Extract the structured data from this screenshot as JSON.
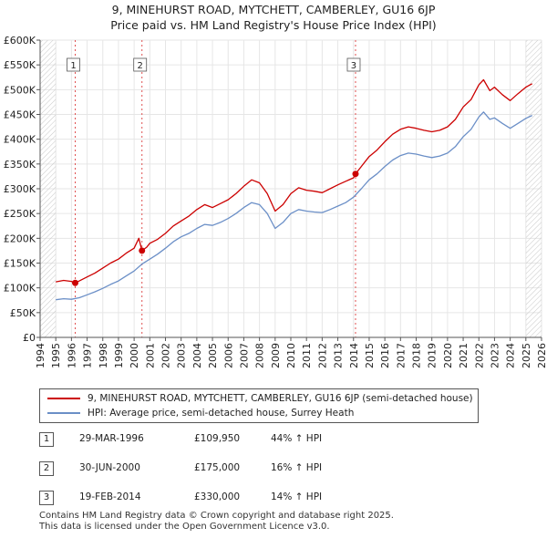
{
  "chart_data": {
    "type": "line",
    "title": "9, MINEHURST ROAD, MYTCHETT, CAMBERLEY, GU16 6JP",
    "subtitle": "Price paid vs. HM Land Registry's House Price Index (HPI)",
    "xlim": [
      1994,
      2026
    ],
    "ylim": [
      0,
      600000
    ],
    "x_ticks": [
      "1994",
      "1995",
      "1996",
      "1997",
      "1998",
      "1999",
      "2000",
      "2001",
      "2002",
      "2003",
      "2004",
      "2005",
      "2006",
      "2007",
      "2008",
      "2009",
      "2010",
      "2011",
      "2012",
      "2013",
      "2014",
      "2015",
      "2016",
      "2017",
      "2018",
      "2019",
      "2020",
      "2021",
      "2022",
      "2023",
      "2024",
      "2025",
      "2026"
    ],
    "y_ticks": [
      {
        "value": 0,
        "label": "£0"
      },
      {
        "value": 50000,
        "label": "£50K"
      },
      {
        "value": 100000,
        "label": "£100K"
      },
      {
        "value": 150000,
        "label": "£150K"
      },
      {
        "value": 200000,
        "label": "£200K"
      },
      {
        "value": 250000,
        "label": "£250K"
      },
      {
        "value": 300000,
        "label": "£300K"
      },
      {
        "value": 350000,
        "label": "£350K"
      },
      {
        "value": 400000,
        "label": "£400K"
      },
      {
        "value": 450000,
        "label": "£450K"
      },
      {
        "value": 500000,
        "label": "£500K"
      },
      {
        "value": 550000,
        "label": "£550K"
      },
      {
        "value": 600000,
        "label": "£600K"
      }
    ],
    "grid": true,
    "series": [
      {
        "name": "9, MINEHURST ROAD, MYTCHETT, CAMBERLEY, GU16 6JP (semi-detached house)",
        "color": "#cc0000",
        "points": [
          [
            1995.0,
            112000
          ],
          [
            1995.5,
            115000
          ],
          [
            1996.0,
            113000
          ],
          [
            1996.24,
            109950
          ],
          [
            1996.5,
            114000
          ],
          [
            1997.0,
            122000
          ],
          [
            1997.5,
            130000
          ],
          [
            1998.0,
            140000
          ],
          [
            1998.5,
            150000
          ],
          [
            1999.0,
            158000
          ],
          [
            1999.5,
            170000
          ],
          [
            2000.0,
            180000
          ],
          [
            2000.3,
            200000
          ],
          [
            2000.5,
            175000
          ],
          [
            2000.8,
            182000
          ],
          [
            2001.0,
            190000
          ],
          [
            2001.5,
            198000
          ],
          [
            2002.0,
            210000
          ],
          [
            2002.5,
            225000
          ],
          [
            2003.0,
            235000
          ],
          [
            2003.5,
            245000
          ],
          [
            2004.0,
            258000
          ],
          [
            2004.5,
            268000
          ],
          [
            2005.0,
            262000
          ],
          [
            2005.5,
            270000
          ],
          [
            2006.0,
            278000
          ],
          [
            2006.5,
            290000
          ],
          [
            2007.0,
            305000
          ],
          [
            2007.5,
            318000
          ],
          [
            2008.0,
            312000
          ],
          [
            2008.5,
            290000
          ],
          [
            2009.0,
            255000
          ],
          [
            2009.5,
            268000
          ],
          [
            2010.0,
            290000
          ],
          [
            2010.5,
            302000
          ],
          [
            2011.0,
            297000
          ],
          [
            2011.5,
            295000
          ],
          [
            2012.0,
            292000
          ],
          [
            2012.5,
            300000
          ],
          [
            2013.0,
            308000
          ],
          [
            2013.5,
            315000
          ],
          [
            2014.0,
            322000
          ],
          [
            2014.13,
            330000
          ],
          [
            2014.5,
            345000
          ],
          [
            2015.0,
            365000
          ],
          [
            2015.5,
            378000
          ],
          [
            2016.0,
            395000
          ],
          [
            2016.5,
            410000
          ],
          [
            2017.0,
            420000
          ],
          [
            2017.5,
            425000
          ],
          [
            2018.0,
            422000
          ],
          [
            2018.5,
            418000
          ],
          [
            2019.0,
            415000
          ],
          [
            2019.5,
            418000
          ],
          [
            2020.0,
            425000
          ],
          [
            2020.5,
            440000
          ],
          [
            2021.0,
            465000
          ],
          [
            2021.5,
            480000
          ],
          [
            2022.0,
            510000
          ],
          [
            2022.3,
            520000
          ],
          [
            2022.7,
            498000
          ],
          [
            2023.0,
            505000
          ],
          [
            2023.5,
            490000
          ],
          [
            2024.0,
            478000
          ],
          [
            2024.5,
            492000
          ],
          [
            2025.0,
            505000
          ],
          [
            2025.4,
            512000
          ]
        ]
      },
      {
        "name": "HPI: Average price, semi-detached house, Surrey Heath",
        "color": "#6b8fc7",
        "points": [
          [
            1995.0,
            76000
          ],
          [
            1995.5,
            78000
          ],
          [
            1996.0,
            77000
          ],
          [
            1996.5,
            80000
          ],
          [
            1997.0,
            86000
          ],
          [
            1997.5,
            92000
          ],
          [
            1998.0,
            99000
          ],
          [
            1998.5,
            107000
          ],
          [
            1999.0,
            114000
          ],
          [
            1999.5,
            124000
          ],
          [
            2000.0,
            134000
          ],
          [
            2000.5,
            148000
          ],
          [
            2001.0,
            158000
          ],
          [
            2001.5,
            168000
          ],
          [
            2002.0,
            180000
          ],
          [
            2002.5,
            193000
          ],
          [
            2003.0,
            203000
          ],
          [
            2003.5,
            210000
          ],
          [
            2004.0,
            220000
          ],
          [
            2004.5,
            228000
          ],
          [
            2005.0,
            226000
          ],
          [
            2005.5,
            232000
          ],
          [
            2006.0,
            240000
          ],
          [
            2006.5,
            250000
          ],
          [
            2007.0,
            262000
          ],
          [
            2007.5,
            272000
          ],
          [
            2008.0,
            268000
          ],
          [
            2008.5,
            250000
          ],
          [
            2009.0,
            220000
          ],
          [
            2009.5,
            232000
          ],
          [
            2010.0,
            250000
          ],
          [
            2010.5,
            258000
          ],
          [
            2011.0,
            255000
          ],
          [
            2011.5,
            253000
          ],
          [
            2012.0,
            252000
          ],
          [
            2012.5,
            258000
          ],
          [
            2013.0,
            265000
          ],
          [
            2013.5,
            272000
          ],
          [
            2014.0,
            283000
          ],
          [
            2014.5,
            300000
          ],
          [
            2015.0,
            318000
          ],
          [
            2015.5,
            330000
          ],
          [
            2016.0,
            345000
          ],
          [
            2016.5,
            358000
          ],
          [
            2017.0,
            367000
          ],
          [
            2017.5,
            372000
          ],
          [
            2018.0,
            370000
          ],
          [
            2018.5,
            366000
          ],
          [
            2019.0,
            363000
          ],
          [
            2019.5,
            366000
          ],
          [
            2020.0,
            372000
          ],
          [
            2020.5,
            385000
          ],
          [
            2021.0,
            405000
          ],
          [
            2021.5,
            420000
          ],
          [
            2022.0,
            445000
          ],
          [
            2022.3,
            455000
          ],
          [
            2022.7,
            440000
          ],
          [
            2023.0,
            443000
          ],
          [
            2023.5,
            432000
          ],
          [
            2024.0,
            422000
          ],
          [
            2024.5,
            432000
          ],
          [
            2025.0,
            442000
          ],
          [
            2025.4,
            448000
          ]
        ]
      }
    ],
    "sales": [
      {
        "num": "1",
        "x": 1996.24,
        "value": 109950
      },
      {
        "num": "2",
        "x": 2000.5,
        "value": 175000
      },
      {
        "num": "3",
        "x": 2014.13,
        "value": 330000
      }
    ]
  },
  "legend": {
    "property_label": "9, MINEHURST ROAD, MYTCHETT, CAMBERLEY, GU16 6JP (semi-detached house)",
    "hpi_label": "HPI: Average price, semi-detached house, Surrey Heath",
    "property_color": "#cc0000",
    "hpi_color": "#6b8fc7"
  },
  "sales_table": [
    {
      "num": "1",
      "date": "29-MAR-1996",
      "price": "£109,950",
      "hpi": "44% ↑ HPI"
    },
    {
      "num": "2",
      "date": "30-JUN-2000",
      "price": "£175,000",
      "hpi": "16% ↑ HPI"
    },
    {
      "num": "3",
      "date": "19-FEB-2014",
      "price": "£330,000",
      "hpi": "14% ↑ HPI"
    }
  ],
  "footer": {
    "line1": "Contains HM Land Registry data © Crown copyright and database right 2025.",
    "line2": "This data is licensed under the Open Government Licence v3.0."
  }
}
